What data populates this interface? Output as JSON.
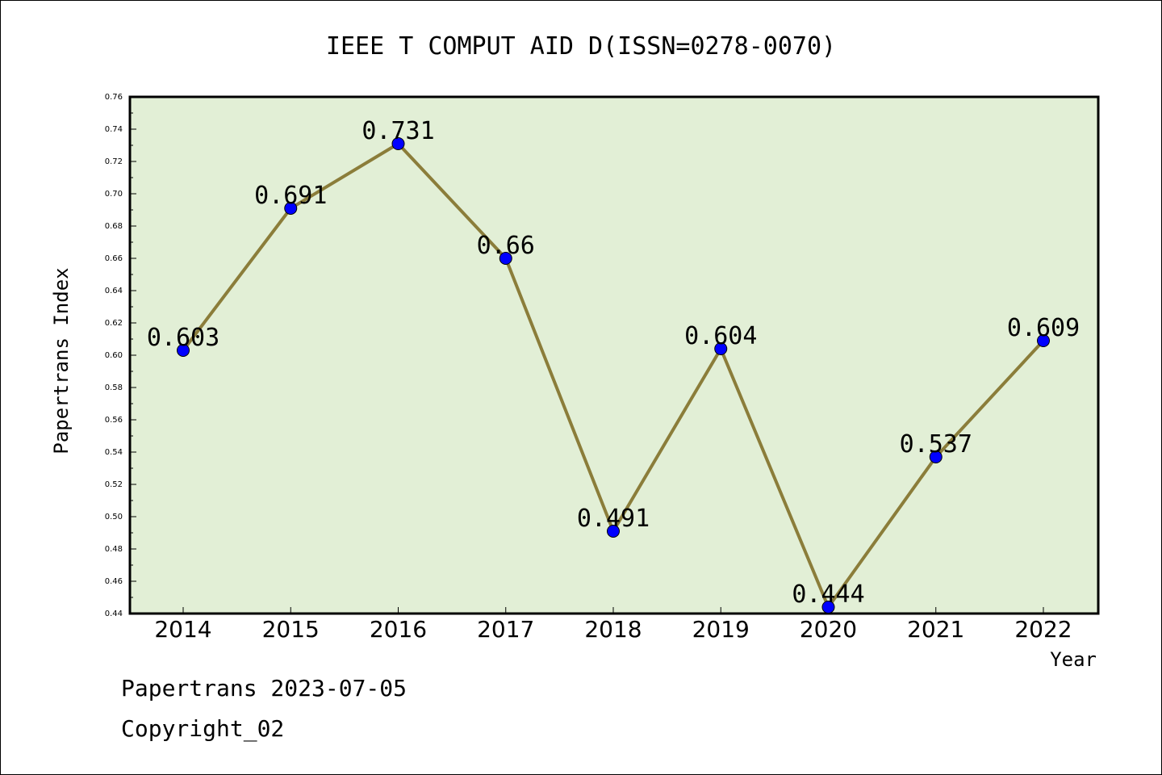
{
  "chart_data": {
    "type": "line",
    "title": "IEEE T COMPUT AID D(ISSN=0278-0070)",
    "xlabel": "Year",
    "ylabel": "Papertrans Index",
    "categories": [
      "2014",
      "2015",
      "2016",
      "2017",
      "2018",
      "2019",
      "2020",
      "2021",
      "2022"
    ],
    "values": [
      0.603,
      0.691,
      0.731,
      0.66,
      0.491,
      0.604,
      0.444,
      0.537,
      0.609
    ],
    "data_labels": [
      "0.603",
      "0.691",
      "0.731",
      "0.66",
      "0.491",
      "0.604",
      "0.444",
      "0.537",
      "0.609"
    ],
    "ylim": [
      0.44,
      0.76
    ],
    "yticks": [
      "0.44",
      "0.46",
      "0.48",
      "0.50",
      "0.52",
      "0.54",
      "0.56",
      "0.58",
      "0.60",
      "0.62",
      "0.64",
      "0.66",
      "0.68",
      "0.70",
      "0.72",
      "0.74",
      "0.76"
    ],
    "grid": false,
    "colors": {
      "plot_background": "#e2efd6",
      "line": "#8b7d3a",
      "marker": "#0000ff"
    }
  },
  "footer": {
    "line1": "Papertrans 2023-07-05",
    "line2": "Copyright_02"
  }
}
